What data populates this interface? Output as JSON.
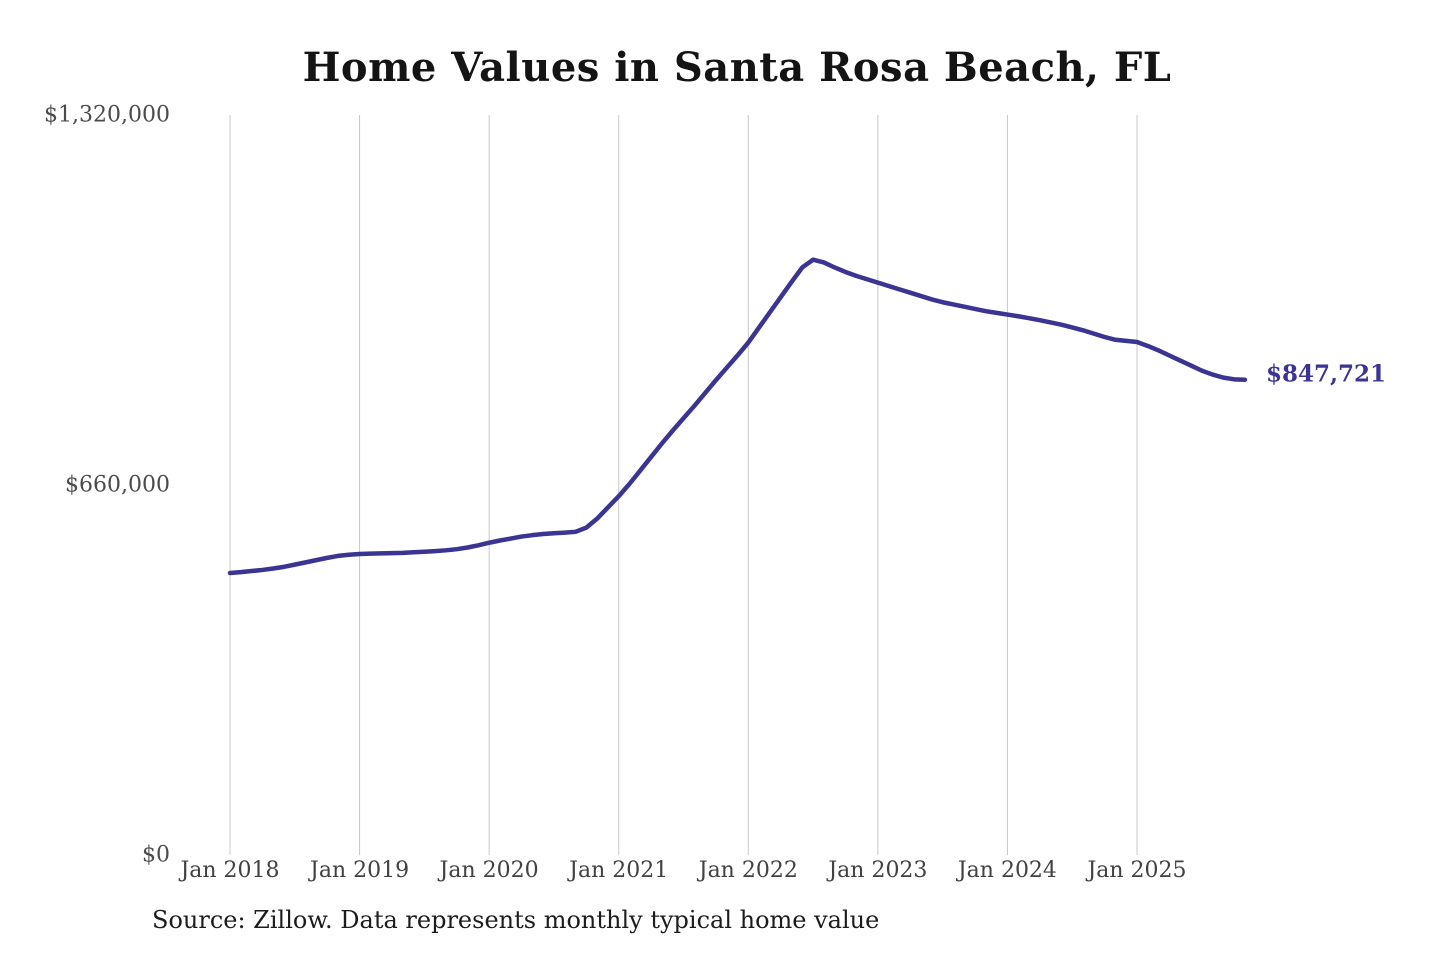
{
  "chart_data": {
    "type": "line",
    "title": "Home Values in Santa Rosa Beach, FL",
    "source_note": "Source: Zillow. Data represents monthly typical home value",
    "end_label": "$847,721",
    "latest_value": 847721,
    "unit": "USD",
    "grid": "vertical-only",
    "legend": "none",
    "ylim": [
      0,
      1320000
    ],
    "y_tick_labels": [
      "$0",
      "$660,000",
      "$1,320,000"
    ],
    "y_tick_values": [
      0,
      660000,
      1320000
    ],
    "x_tick_labels": [
      "Jan 2018",
      "Jan 2019",
      "Jan 2020",
      "Jan 2021",
      "Jan 2022",
      "Jan 2023",
      "Jan 2024",
      "Jan 2025"
    ],
    "colors": {
      "line": "#3b3492",
      "grid": "#c9c9c9",
      "title": "#141414",
      "axis_label": "#4b4b4b",
      "end_label": "#3b3492",
      "source": "#1c1c1c"
    },
    "series": [
      {
        "name": "Monthly typical home value",
        "start_month": "Jan 2018",
        "end_month": "Nov 2025",
        "frequency": "monthly",
        "values": [
          503000,
          504500,
          506500,
          508500,
          511000,
          514000,
          518000,
          522000,
          526000,
          530000,
          533500,
          535500,
          537000,
          537500,
          538000,
          538500,
          539000,
          540000,
          541000,
          542000,
          543500,
          545500,
          548500,
          552500,
          557000,
          561000,
          564500,
          568000,
          570500,
          572500,
          574000,
          575000,
          576500,
          584000,
          600000,
          620000,
          640000,
          662000,
          686000,
          710000,
          734000,
          757000,
          779000,
          801000,
          824000,
          847000,
          869000,
          891000,
          914000,
          941000,
          968000,
          995000,
          1022000,
          1048000,
          1062000,
          1057000,
          1048000,
          1040000,
          1033000,
          1027000,
          1021000,
          1015000,
          1009000,
          1003000,
          997000,
          991000,
          986000,
          982000,
          978000,
          974000,
          970000,
          967000,
          964000,
          961000,
          957500,
          954000,
          950000,
          946000,
          941000,
          936000,
          930000,
          924000,
          919000,
          917000,
          915000,
          908000,
          900000,
          891000,
          882000,
          873000,
          864000,
          857000,
          851500,
          848500,
          847721
        ]
      }
    ]
  }
}
